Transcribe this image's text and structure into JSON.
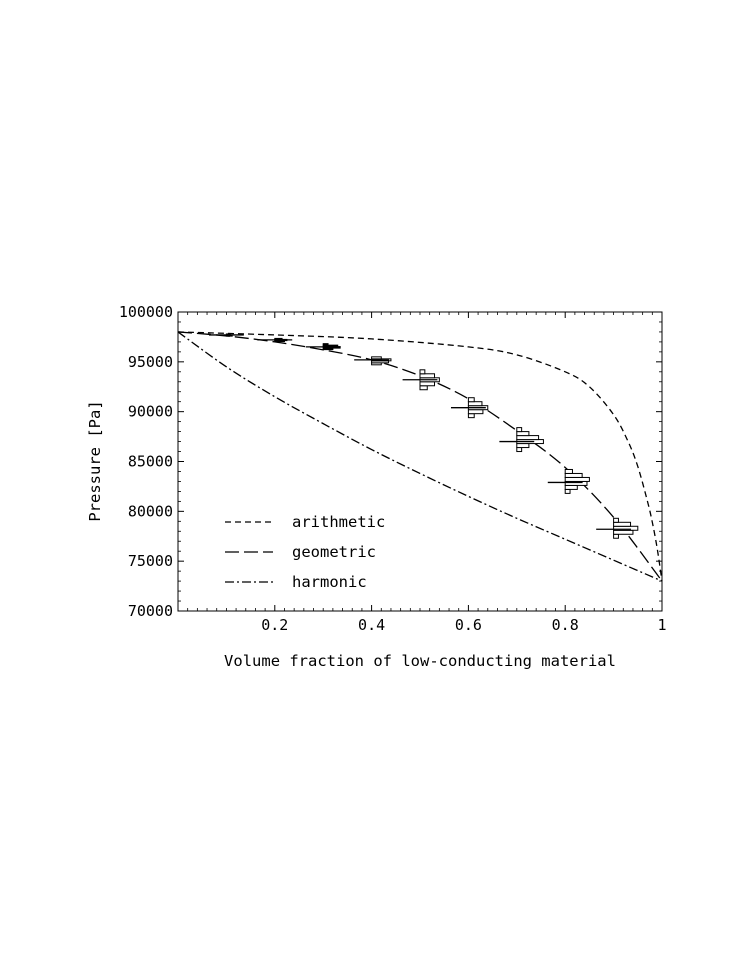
{
  "chart_data": {
    "type": "line",
    "title": "",
    "xlabel": "Volume fraction of low-conducting material",
    "ylabel": "Pressure [Pa]",
    "xlim": [
      0,
      1
    ],
    "ylim": [
      70000,
      100000
    ],
    "x_ticks": [
      0.2,
      0.4,
      0.6,
      0.8,
      1
    ],
    "x_tick_labels": [
      "0.2",
      "0.4",
      "0.6",
      "0.8",
      "1"
    ],
    "y_ticks": [
      70000,
      75000,
      80000,
      85000,
      90000,
      95000,
      100000
    ],
    "y_tick_labels": [
      "70000",
      "75000",
      "80000",
      "85000",
      "90000",
      "95000",
      "100000"
    ],
    "grid": false,
    "legend_position": "bottom-left",
    "series": [
      {
        "name": "arithmetic",
        "style": "short-dash",
        "x": [
          0,
          0.2,
          0.4,
          0.6,
          0.7,
          0.8,
          0.85,
          0.9,
          0.93,
          0.95,
          0.97,
          0.98,
          0.99,
          1.0
        ],
        "y": [
          98000,
          97700,
          97300,
          96500,
          95700,
          94000,
          92500,
          89700,
          87000,
          84500,
          81000,
          78900,
          76300,
          73000
        ]
      },
      {
        "name": "geometric",
        "style": "long-dash",
        "x": [
          0,
          0.1,
          0.2,
          0.3,
          0.4,
          0.5,
          0.6,
          0.7,
          0.8,
          0.9,
          1.0
        ],
        "y": [
          98000,
          97600,
          97000,
          96200,
          95200,
          93600,
          91300,
          88100,
          84400,
          79400,
          73000
        ]
      },
      {
        "name": "harmonic",
        "style": "dash-dot",
        "x": [
          0,
          0.1,
          0.2,
          0.3,
          0.4,
          0.5,
          0.6,
          0.7,
          0.8,
          0.9,
          1.0
        ],
        "y": [
          98000,
          94500,
          91500,
          88800,
          86200,
          83800,
          81500,
          79300,
          77200,
          75100,
          73000
        ]
      }
    ],
    "histograms": [
      {
        "x": 0.1,
        "mean": 97700,
        "bins": [
          97650,
          97750
        ],
        "widths": [
          0.012,
          0.008
        ]
      },
      {
        "x": 0.2,
        "mean": 97200,
        "bins": [
          97100,
          97200,
          97300
        ],
        "widths": [
          0.02,
          0.025,
          0.015
        ]
      },
      {
        "x": 0.3,
        "mean": 96500,
        "bins": [
          96300,
          96450,
          96600,
          96750
        ],
        "widths": [
          0.02,
          0.035,
          0.03,
          0.01
        ]
      },
      {
        "x": 0.4,
        "mean": 95200,
        "bins": [
          94800,
          95000,
          95200,
          95400
        ],
        "widths": [
          0.02,
          0.035,
          0.04,
          0.02
        ]
      },
      {
        "x": 0.5,
        "mean": 93200,
        "bins": [
          92400,
          92800,
          93200,
          93600,
          94000
        ],
        "widths": [
          0.015,
          0.03,
          0.04,
          0.03,
          0.01
        ]
      },
      {
        "x": 0.6,
        "mean": 90400,
        "bins": [
          89600,
          90000,
          90400,
          90800,
          91200
        ],
        "widths": [
          0.012,
          0.03,
          0.04,
          0.028,
          0.012
        ]
      },
      {
        "x": 0.7,
        "mean": 87000,
        "bins": [
          86200,
          86600,
          87000,
          87400,
          87800,
          88200
        ],
        "widths": [
          0.01,
          0.025,
          0.055,
          0.045,
          0.025,
          0.01
        ]
      },
      {
        "x": 0.8,
        "mean": 82900,
        "bins": [
          82000,
          82400,
          82800,
          83200,
          83600,
          84000
        ],
        "widths": [
          0.01,
          0.025,
          0.045,
          0.05,
          0.035,
          0.015
        ]
      },
      {
        "x": 0.9,
        "mean": 78200,
        "bins": [
          77500,
          77900,
          78300,
          78700,
          79100
        ],
        "widths": [
          0.01,
          0.04,
          0.05,
          0.035,
          0.01
        ]
      }
    ]
  }
}
